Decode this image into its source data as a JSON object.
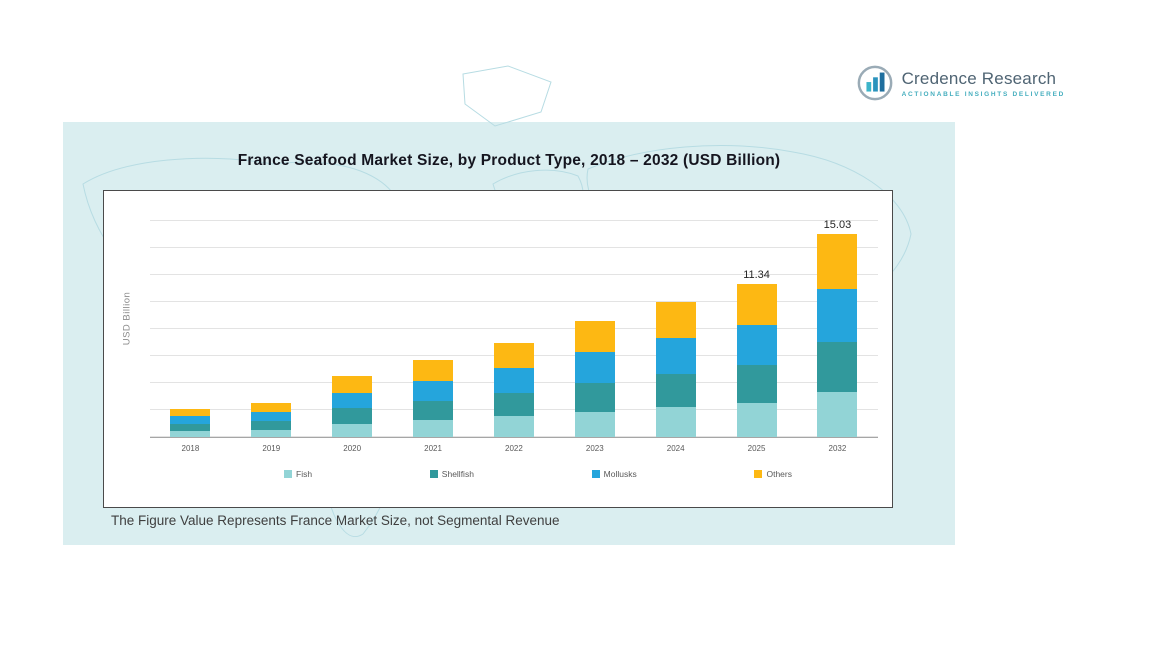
{
  "logo": {
    "brand": "Credence Research",
    "tagline": "Actionable Insights Delivered"
  },
  "panel": {
    "title": "France Seafood Market Size, by Product Type, 2018 – 2032 (USD Billion)",
    "footnote": "The Figure Value Represents France Market Size, not Segmental Revenue"
  },
  "chart_data": {
    "type": "bar",
    "stacked": true,
    "title": "France Seafood Market Size, by Product Type, 2018 – 2032 (USD Billion)",
    "xlabel": "",
    "ylabel": "USD Billion",
    "ylim": [
      0,
      17
    ],
    "grid": true,
    "legend_position": "bottom",
    "categories": [
      "2018",
      "2019",
      "2020",
      "2021",
      "2022",
      "2023",
      "2024",
      "2025",
      "2032"
    ],
    "series": [
      {
        "name": "Fish",
        "color": "#92d4d6",
        "values": [
          0.46,
          0.55,
          0.99,
          1.25,
          1.54,
          1.89,
          2.2,
          2.49,
          3.31
        ]
      },
      {
        "name": "Shellfish",
        "color": "#31999c",
        "values": [
          0.53,
          0.63,
          1.13,
          1.43,
          1.75,
          2.15,
          2.5,
          2.84,
          3.76
        ]
      },
      {
        "name": "Mollusks",
        "color": "#25a5dc",
        "values": [
          0.55,
          0.65,
          1.17,
          1.48,
          1.82,
          2.24,
          2.6,
          2.95,
          3.91
        ]
      },
      {
        "name": "Others",
        "color": "#fdb813",
        "values": [
          0.56,
          0.67,
          1.21,
          1.54,
          1.89,
          2.32,
          2.7,
          3.06,
          4.05
        ]
      }
    ],
    "totals": [
      2.1,
      2.5,
      4.5,
      5.7,
      7.0,
      8.6,
      10.0,
      11.34,
      15.03
    ],
    "total_labels": [
      "",
      "",
      "",
      "",
      "",
      "",
      "",
      "11.34",
      "15.03"
    ]
  }
}
